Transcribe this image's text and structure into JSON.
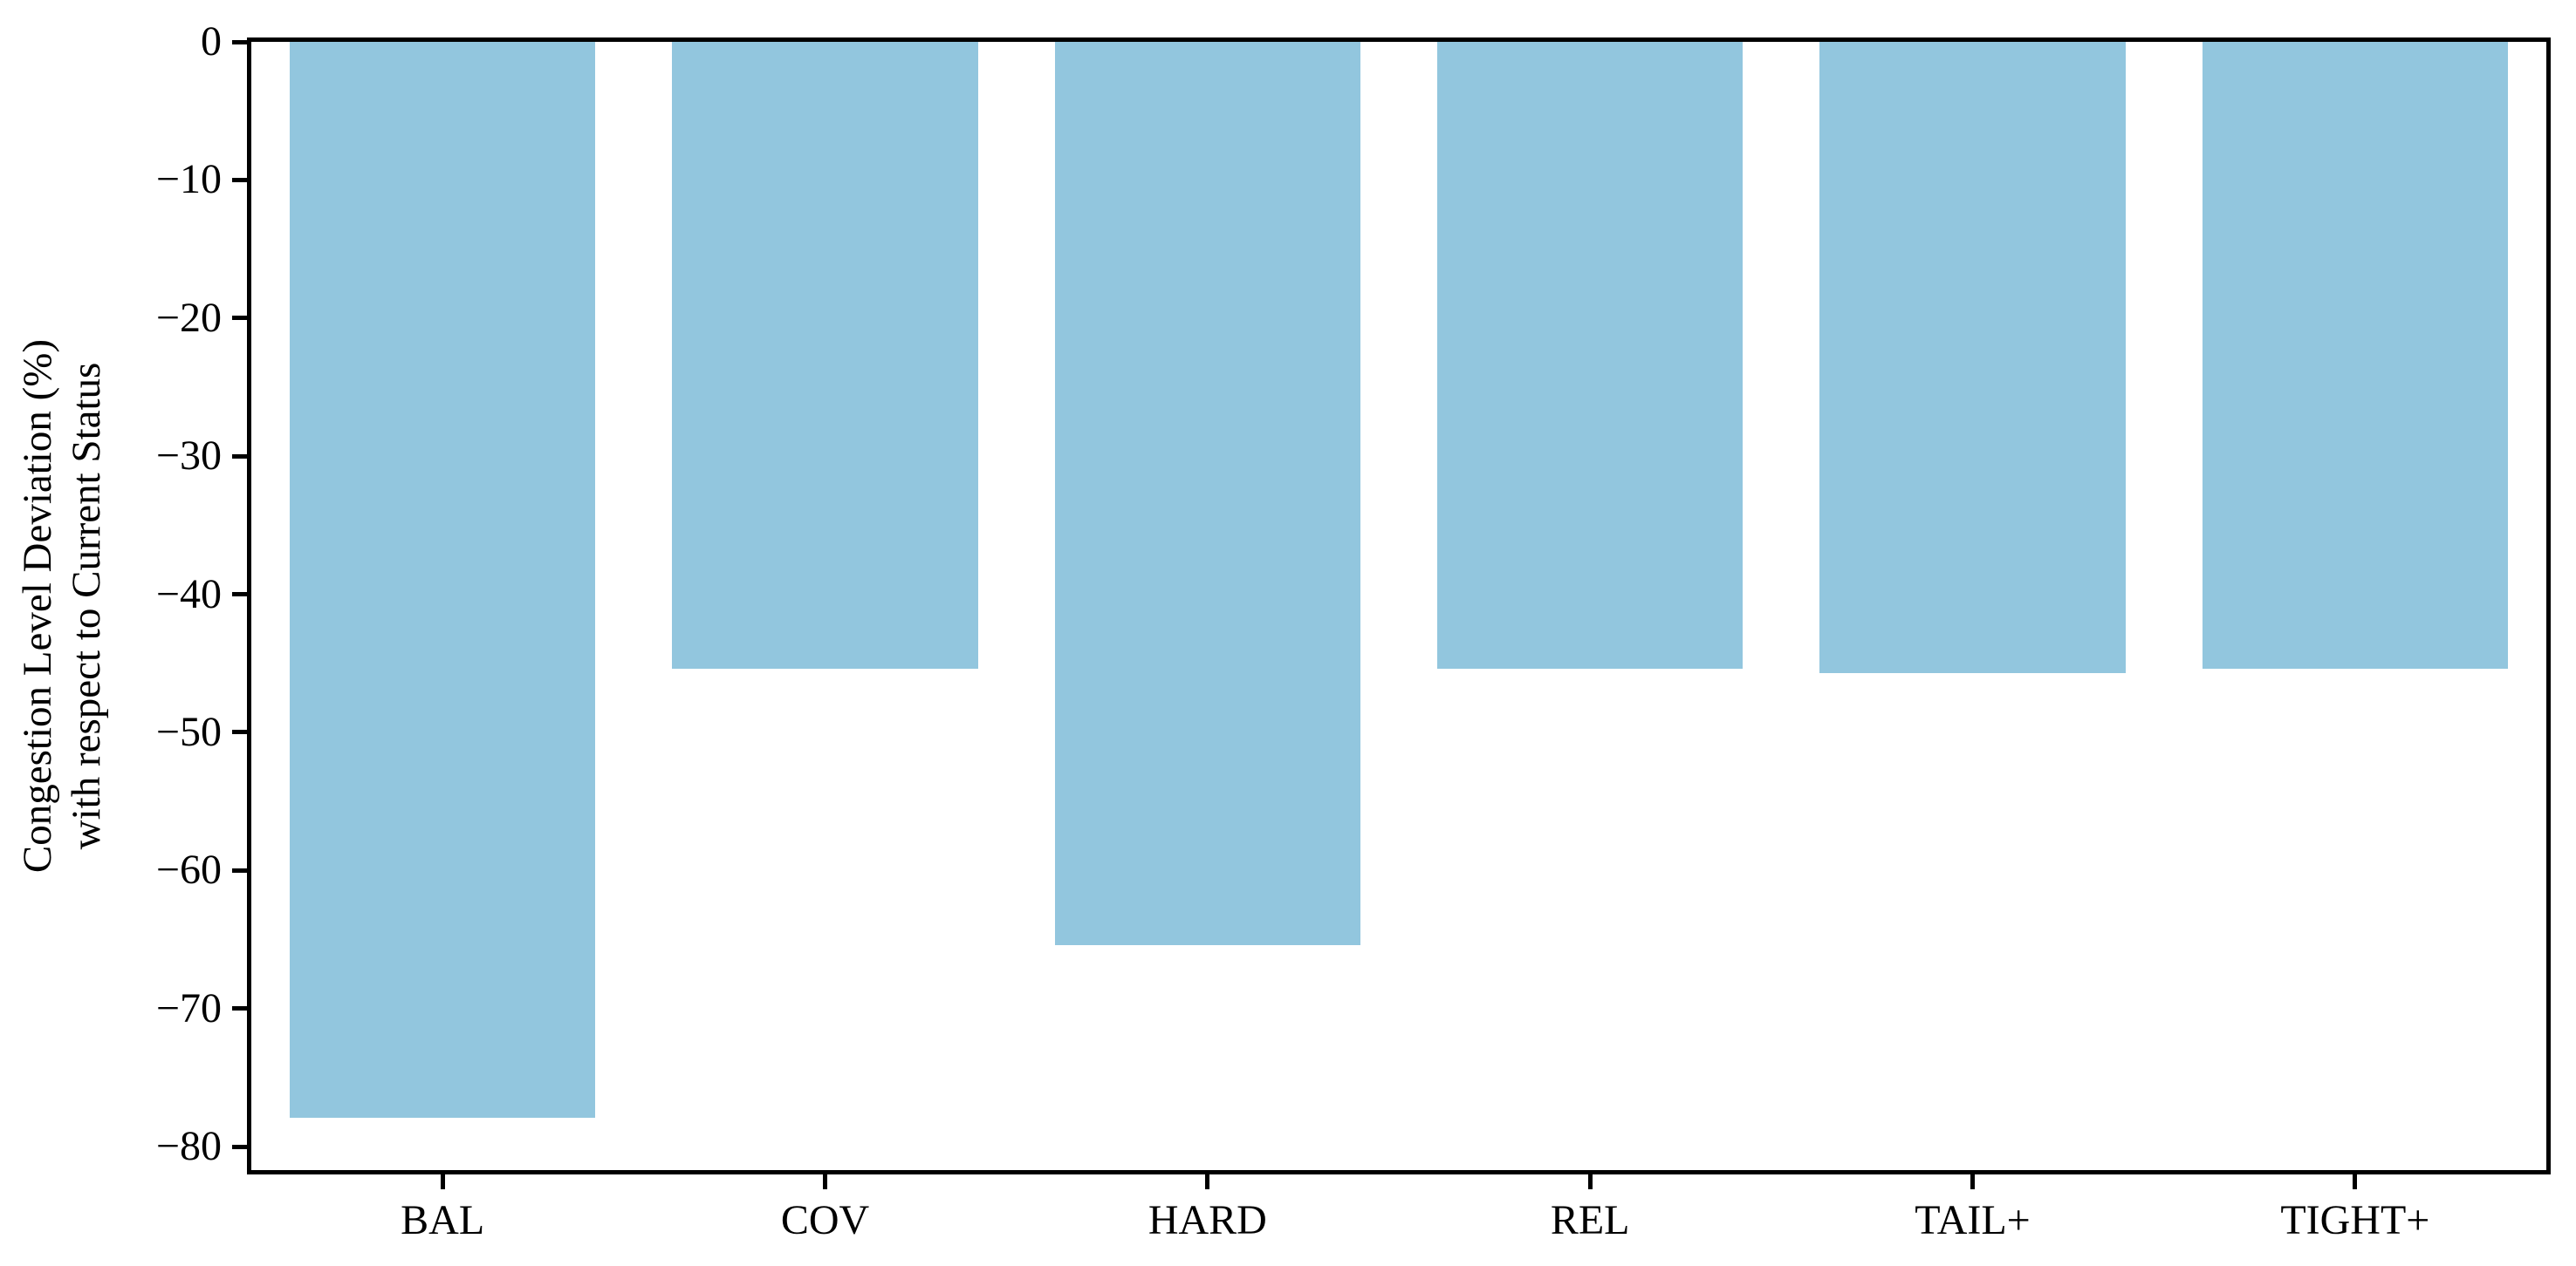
{
  "chart_data": {
    "type": "bar",
    "title": "",
    "xlabel": "",
    "ylabel": "Congestion Level Deviation (%)\nwith respect to Current Status",
    "ylabel_lines": [
      "Congestion Level Deviation (%)",
      "with respect to Current Status"
    ],
    "categories": [
      "BAL",
      "COV",
      "HARD",
      "REL",
      "TAIL+",
      "TIGHT+"
    ],
    "values": [
      -77.9,
      -45.4,
      -65.4,
      -45.4,
      -45.7,
      -45.4
    ],
    "ylim": [
      -81.7,
      0
    ],
    "xlim": [
      -0.5,
      5.5
    ],
    "yticks": [
      0,
      -10,
      -20,
      -30,
      -40,
      -50,
      -60,
      -70,
      -80
    ],
    "ytick_labels": [
      "0",
      "−10",
      "−20",
      "−30",
      "−40",
      "−50",
      "−60",
      "−70",
      "−80"
    ],
    "bar_width_fraction": 0.8,
    "grid": false,
    "legend": null,
    "colors": {
      "bar": "#92c6de",
      "axis": "#000000",
      "background": "#ffffff",
      "text": "#000000"
    }
  }
}
